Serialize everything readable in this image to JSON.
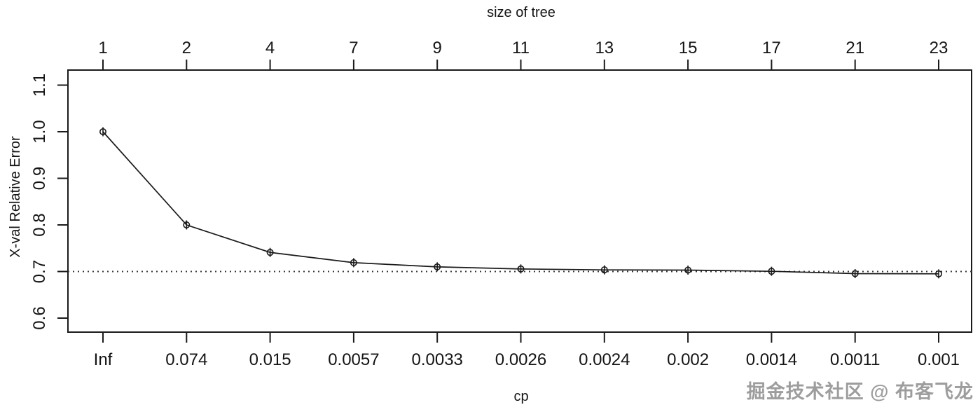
{
  "page": {
    "background": "#ffffff"
  },
  "watermark": {
    "text": "掘金技术社区 @ 布客飞龙",
    "color": "#9d9d9d",
    "highlight_color": "#ffffff"
  },
  "chart_data": {
    "type": "line",
    "title": "",
    "top_axis": {
      "label": "size of tree",
      "tick_labels": [
        "1",
        "2",
        "4",
        "7",
        "9",
        "11",
        "13",
        "15",
        "17",
        "21",
        "23"
      ]
    },
    "bottom_axis": {
      "label": "cp",
      "tick_labels": [
        "Inf",
        "0.074",
        "0.015",
        "0.0057",
        "0.0033",
        "0.0026",
        "0.0024",
        "0.002",
        "0.0014",
        "0.0011",
        "0.001"
      ]
    },
    "y_axis": {
      "label": "X-val Relative Error",
      "tick_labels": [
        "0.6",
        "0.7",
        "0.8",
        "0.9",
        "1.0",
        "1.1"
      ],
      "tick_values": [
        0.6,
        0.7,
        0.8,
        0.9,
        1.0,
        1.1
      ],
      "range": [
        0.567,
        1.125
      ]
    },
    "series": [
      {
        "name": "X-val Relative Error",
        "marker": "open-circle-with-vertical-error-bar",
        "values": [
          1.0,
          0.8,
          0.741,
          0.719,
          0.71,
          0.7055,
          0.7035,
          0.703,
          0.7005,
          0.6955,
          0.695
        ]
      }
    ],
    "reference_line": {
      "value": 0.7,
      "style": "dotted"
    },
    "grid": false,
    "legend": false,
    "colors": {
      "line": "#1a1a1a",
      "text": "#141414",
      "reference_line": "#3c3c3c",
      "background": "#ffffff"
    }
  }
}
